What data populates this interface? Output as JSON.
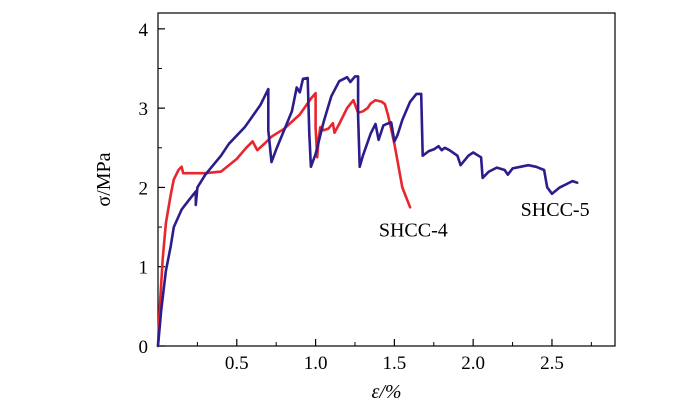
{
  "chart_data": {
    "type": "line",
    "xlabel": "ε/%",
    "ylabel": "σ/MPa",
    "xlim": [
      0,
      2.9
    ],
    "ylim": [
      0,
      4.2
    ],
    "x_ticks": [
      "0.5",
      "1.0",
      "1.5",
      "2.0",
      "2.5"
    ],
    "y_ticks": [
      "0",
      "1",
      "2",
      "3",
      "4"
    ],
    "grid": false,
    "series": [
      {
        "name": "SHCC-4",
        "color": "#e8262b",
        "points": [
          [
            0.0,
            0.0
          ],
          [
            0.01,
            0.45
          ],
          [
            0.03,
            1.1
          ],
          [
            0.05,
            1.55
          ],
          [
            0.08,
            1.9
          ],
          [
            0.1,
            2.1
          ],
          [
            0.13,
            2.22
          ],
          [
            0.15,
            2.26
          ],
          [
            0.16,
            2.18
          ],
          [
            0.2,
            2.18
          ],
          [
            0.3,
            2.18
          ],
          [
            0.4,
            2.2
          ],
          [
            0.5,
            2.36
          ],
          [
            0.56,
            2.5
          ],
          [
            0.6,
            2.58
          ],
          [
            0.63,
            2.47
          ],
          [
            0.68,
            2.56
          ],
          [
            0.72,
            2.64
          ],
          [
            0.8,
            2.74
          ],
          [
            0.9,
            2.92
          ],
          [
            0.97,
            3.12
          ],
          [
            1.0,
            3.19
          ],
          [
            1.0,
            2.75
          ],
          [
            1.01,
            2.38
          ],
          [
            1.02,
            2.62
          ],
          [
            1.03,
            2.76
          ],
          [
            1.05,
            2.72
          ],
          [
            1.08,
            2.74
          ],
          [
            1.11,
            2.81
          ],
          [
            1.12,
            2.69
          ],
          [
            1.15,
            2.8
          ],
          [
            1.2,
            3.0
          ],
          [
            1.24,
            3.1
          ],
          [
            1.27,
            2.94
          ],
          [
            1.3,
            2.96
          ],
          [
            1.33,
            3.0
          ],
          [
            1.35,
            3.06
          ],
          [
            1.38,
            3.1
          ],
          [
            1.42,
            3.08
          ],
          [
            1.44,
            3.05
          ],
          [
            1.46,
            2.91
          ],
          [
            1.5,
            2.55
          ],
          [
            1.55,
            2.0
          ],
          [
            1.6,
            1.75
          ]
        ]
      },
      {
        "name": "SHCC-5",
        "color": "#2c1d8c",
        "points": [
          [
            0.0,
            0.0
          ],
          [
            0.02,
            0.45
          ],
          [
            0.05,
            0.95
          ],
          [
            0.08,
            1.25
          ],
          [
            0.1,
            1.5
          ],
          [
            0.15,
            1.72
          ],
          [
            0.2,
            1.85
          ],
          [
            0.24,
            1.95
          ],
          [
            0.24,
            1.78
          ],
          [
            0.25,
            2.0
          ],
          [
            0.3,
            2.16
          ],
          [
            0.4,
            2.4
          ],
          [
            0.45,
            2.55
          ],
          [
            0.55,
            2.76
          ],
          [
            0.6,
            2.9
          ],
          [
            0.65,
            3.04
          ],
          [
            0.7,
            3.24
          ],
          [
            0.7,
            2.72
          ],
          [
            0.72,
            2.32
          ],
          [
            0.75,
            2.48
          ],
          [
            0.8,
            2.72
          ],
          [
            0.85,
            2.96
          ],
          [
            0.88,
            3.26
          ],
          [
            0.9,
            3.2
          ],
          [
            0.92,
            3.37
          ],
          [
            0.95,
            3.38
          ],
          [
            0.96,
            2.68
          ],
          [
            0.97,
            2.26
          ],
          [
            1.0,
            2.42
          ],
          [
            1.05,
            2.82
          ],
          [
            1.1,
            3.15
          ],
          [
            1.15,
            3.34
          ],
          [
            1.2,
            3.39
          ],
          [
            1.22,
            3.33
          ],
          [
            1.25,
            3.4
          ],
          [
            1.27,
            3.4
          ],
          [
            1.27,
            2.9
          ],
          [
            1.28,
            2.26
          ],
          [
            1.3,
            2.4
          ],
          [
            1.35,
            2.68
          ],
          [
            1.38,
            2.8
          ],
          [
            1.4,
            2.6
          ],
          [
            1.43,
            2.78
          ],
          [
            1.45,
            2.8
          ],
          [
            1.48,
            2.82
          ],
          [
            1.5,
            2.58
          ],
          [
            1.52,
            2.66
          ],
          [
            1.55,
            2.85
          ],
          [
            1.6,
            3.08
          ],
          [
            1.64,
            3.18
          ],
          [
            1.67,
            3.18
          ],
          [
            1.68,
            2.4
          ],
          [
            1.72,
            2.46
          ],
          [
            1.75,
            2.48
          ],
          [
            1.78,
            2.52
          ],
          [
            1.8,
            2.47
          ],
          [
            1.82,
            2.5
          ],
          [
            1.85,
            2.47
          ],
          [
            1.9,
            2.4
          ],
          [
            1.92,
            2.28
          ],
          [
            1.97,
            2.4
          ],
          [
            2.0,
            2.44
          ],
          [
            2.05,
            2.38
          ],
          [
            2.06,
            2.12
          ],
          [
            2.1,
            2.2
          ],
          [
            2.15,
            2.25
          ],
          [
            2.2,
            2.22
          ],
          [
            2.22,
            2.16
          ],
          [
            2.25,
            2.24
          ],
          [
            2.3,
            2.26
          ],
          [
            2.35,
            2.28
          ],
          [
            2.4,
            2.26
          ],
          [
            2.45,
            2.22
          ],
          [
            2.47,
            2.0
          ],
          [
            2.5,
            1.92
          ],
          [
            2.55,
            2.0
          ],
          [
            2.6,
            2.05
          ],
          [
            2.63,
            2.08
          ],
          [
            2.66,
            2.06
          ]
        ]
      }
    ],
    "annotations": [
      {
        "text": "SHCC-4",
        "x": 1.62,
        "y": 1.38
      },
      {
        "text": "SHCC-5",
        "x": 2.52,
        "y": 1.64
      }
    ]
  }
}
